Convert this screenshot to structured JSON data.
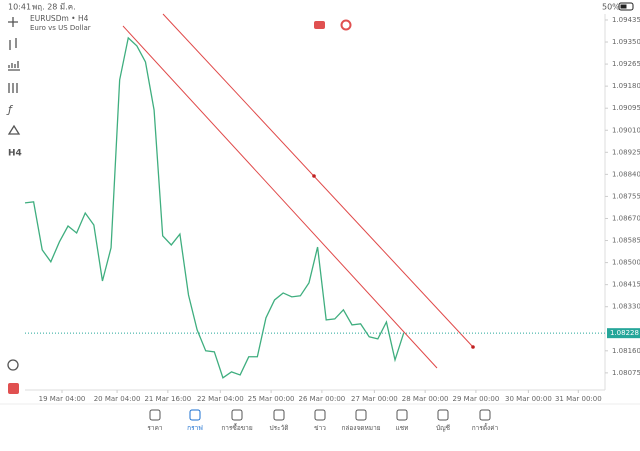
{
  "status_bar": {
    "time": "10:41",
    "date": "พฤ. 28 มี.ค.",
    "battery": "50%"
  },
  "toolbar": {
    "timeframe": "H4"
  },
  "chart_data": {
    "type": "line",
    "title": "EURUSDm • H4",
    "subtitle": "Euro vs US Dollar",
    "color": "#3fae7f",
    "current_price": 1.08228,
    "current_price_color": "#26a69a",
    "values": [
      1.0873,
      1.08734,
      1.08549,
      1.08503,
      1.0858,
      1.08641,
      1.08614,
      1.08691,
      1.08645,
      1.08429,
      1.08557,
      1.09204,
      1.09366,
      1.09335,
      1.09273,
      1.09088,
      1.08603,
      1.08568,
      1.0861,
      1.08375,
      1.08241,
      1.0816,
      1.08156,
      1.08056,
      1.08079,
      1.08067,
      1.08137,
      1.08137,
      1.08287,
      1.08356,
      1.08383,
      1.08368,
      1.08372,
      1.08422,
      1.0856,
      1.08279,
      1.08283,
      1.08318,
      1.0826,
      1.08264,
      1.08214,
      1.08206,
      1.08271,
      1.08125,
      1.08228
    ],
    "xlim": [
      0,
      67.4
    ],
    "ylim": [
      1.08009,
      1.09458
    ],
    "xticks": [
      {
        "value": 4.3,
        "label": "19 Mar 04:00"
      },
      {
        "value": 10.7,
        "label": "20 Mar 04:00"
      },
      {
        "value": 16.6,
        "label": "21 Mar 16:00"
      },
      {
        "value": 22.7,
        "label": "22 Mar 04:00"
      },
      {
        "value": 28.6,
        "label": "25 Mar 00:00"
      },
      {
        "value": 34.5,
        "label": "26 Mar 00:00"
      },
      {
        "value": 40.6,
        "label": "27 Mar 00:00"
      },
      {
        "value": 46.5,
        "label": "28 Mar 00:00"
      },
      {
        "value": 52.4,
        "label": "29 Mar 00:00"
      },
      {
        "value": 58.5,
        "label": "30 Mar 00:00"
      },
      {
        "value": 64.3,
        "label": "31 Mar 00:00"
      }
    ],
    "yticks": [
      1.09435,
      {
        "value": 1.0935,
        "label": "1.09350"
      },
      1.09265,
      {
        "value": 1.0918,
        "label": "1.09180"
      },
      1.09095,
      {
        "value": 1.0901,
        "label": "1.09010"
      },
      1.08925,
      {
        "value": 1.0884,
        "label": "1.08840"
      },
      1.08755,
      {
        "value": 1.0867,
        "label": "1.08670"
      },
      1.08585,
      {
        "value": 1.085,
        "label": "1.08500"
      },
      1.08415,
      {
        "value": 1.0833,
        "label": "1.08330"
      },
      {
        "value": 1.0816,
        "label": "1.08160"
      },
      1.08075
    ]
  },
  "tab_bar": {
    "tabs": [
      "ราคา",
      "กราฟ",
      "การซื้อขาย",
      "ประวัติ",
      "ข่าว",
      "กล่องจดหมาย",
      "แชท",
      "บัญชี",
      "การตั้งค่า"
    ]
  }
}
